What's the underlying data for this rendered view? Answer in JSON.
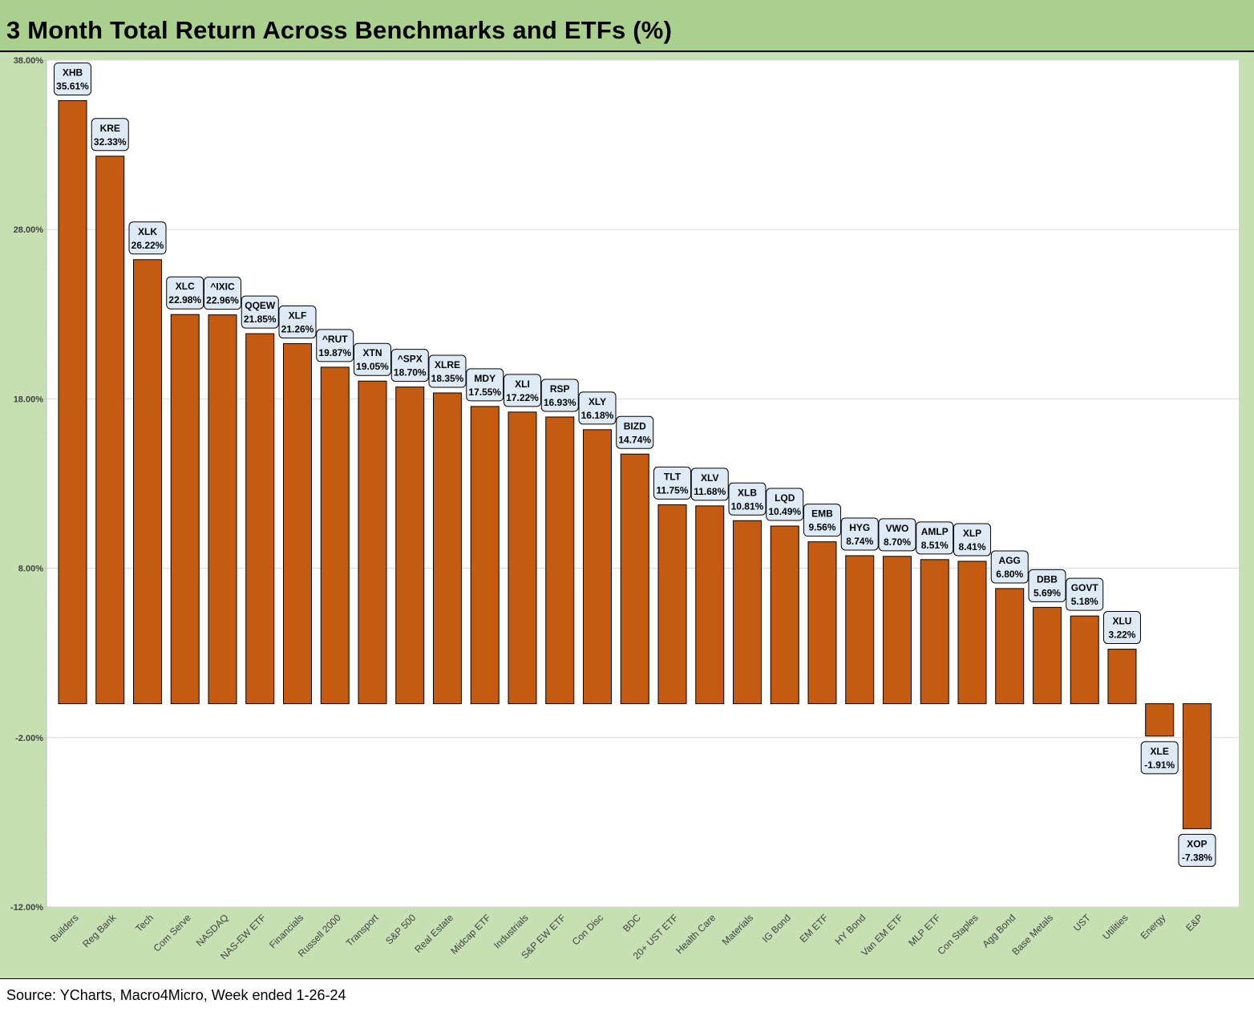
{
  "title": "3 Month Total Return Across Benchmarks and ETFs (%)",
  "source": "Source: YCharts, Macro4Micro, Week ended 1-26-24",
  "colors": {
    "bar": "#c55a11",
    "title_bg": "#a9d08e",
    "frame_bg": "#c6e0b4",
    "label_bg": "#deebf7",
    "grid": "#d9d9d9"
  },
  "chart_data": {
    "type": "bar",
    "title": "3 Month Total Return Across Benchmarks and ETFs (%)",
    "ylim": [
      -12,
      38
    ],
    "yticks": [
      38,
      28,
      18,
      8,
      -2,
      -12
    ],
    "ytick_labels": [
      "38.00%",
      "28.00%",
      "18.00%",
      "8.00%",
      "-2.00%",
      "-12.00%"
    ],
    "grid": true,
    "categories": [
      "Builders",
      "Reg Bank",
      "Tech",
      "Com Serve",
      "NASDAQ",
      "NAS-EW ETF",
      "Financials",
      "Russell 2000",
      "Transport",
      "S&P 500",
      "Real Estate",
      "Midcap ETF",
      "Industrials",
      "S&P EW ETF",
      "Con Disc",
      "BDC",
      "20+ UST ETF",
      "Health Care",
      "Materials",
      "IG Bond",
      "EM ETF",
      "HY Bond",
      "Van EM ETF",
      "MLP ETF",
      "Con Staples",
      "Agg Bond",
      "Base Metals",
      "UST",
      "Utilities",
      "Energy",
      "E&P"
    ],
    "tickers": [
      "XHB",
      "KRE",
      "XLK",
      "XLC",
      "^IXIC",
      "QQEW",
      "XLF",
      "^RUT",
      "XTN",
      "^SPX",
      "XLRE",
      "MDY",
      "XLI",
      "RSP",
      "XLY",
      "BIZD",
      "TLT",
      "XLV",
      "XLB",
      "LQD",
      "EMB",
      "HYG",
      "VWO",
      "AMLP",
      "XLP",
      "AGG",
      "DBB",
      "GOVT",
      "XLU",
      "XLE",
      "XOP"
    ],
    "values": [
      35.61,
      32.33,
      26.22,
      22.98,
      22.96,
      21.85,
      21.26,
      19.87,
      19.05,
      18.7,
      18.35,
      17.55,
      17.22,
      16.93,
      16.18,
      14.74,
      11.75,
      11.68,
      10.81,
      10.49,
      9.56,
      8.74,
      8.7,
      8.51,
      8.41,
      6.8,
      5.69,
      5.18,
      3.22,
      -1.91,
      -7.38
    ],
    "value_labels": [
      "35.61%",
      "32.33%",
      "26.22%",
      "22.98%",
      "22.96%",
      "21.85%",
      "21.26%",
      "19.87%",
      "19.05%",
      "18.70%",
      "18.35%",
      "17.55%",
      "17.22%",
      "16.93%",
      "16.18%",
      "14.74%",
      "11.75%",
      "11.68%",
      "10.81%",
      "10.49%",
      "9.56%",
      "8.74%",
      "8.70%",
      "8.51%",
      "8.41%",
      "6.80%",
      "5.69%",
      "5.18%",
      "3.22%",
      "-1.91%",
      "-7.38%"
    ]
  }
}
